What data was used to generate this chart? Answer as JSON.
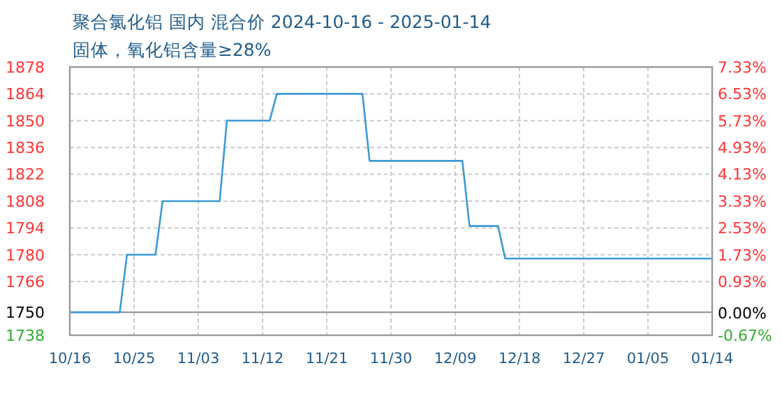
{
  "chart_data": {
    "type": "line",
    "title": "聚合氯化铝 国内 混合价 2024-10-16 - 2025-01-14",
    "subtitle": "固体，氧化铝含量≥28%",
    "x": [
      "2024-10-16",
      "2024-10-23",
      "2024-10-24",
      "2024-10-28",
      "2024-10-29",
      "2024-11-06",
      "2024-11-07",
      "2024-11-13",
      "2024-11-14",
      "2024-11-26",
      "2024-11-27",
      "2024-12-10",
      "2024-12-11",
      "2024-12-15",
      "2024-12-16",
      "2025-01-14"
    ],
    "series": [
      {
        "color": "#3d9ad6",
        "values": [
          1750,
          1750,
          1780,
          1780,
          1808,
          1808,
          1850,
          1850,
          1864,
          1864,
          1829,
          1829,
          1795,
          1795,
          1778,
          1778
        ]
      }
    ],
    "xlim": [
      "2024-10-16",
      "2025-01-14"
    ],
    "xticks": [
      {
        "value": "2024-10-16",
        "label": "10/16"
      },
      {
        "value": "2024-10-25",
        "label": "10/25"
      },
      {
        "value": "2024-11-03",
        "label": "11/03"
      },
      {
        "value": "2024-11-12",
        "label": "11/12"
      },
      {
        "value": "2024-11-21",
        "label": "11/21"
      },
      {
        "value": "2024-11-30",
        "label": "11/30"
      },
      {
        "value": "2024-12-09",
        "label": "12/09"
      },
      {
        "value": "2024-12-18",
        "label": "12/18"
      },
      {
        "value": "2024-12-27",
        "label": "12/27"
      },
      {
        "value": "2025-01-05",
        "label": "01/05"
      },
      {
        "value": "2025-01-14",
        "label": "01/14"
      }
    ],
    "ylim": [
      1738,
      1878
    ],
    "yticks": [
      1738,
      1750,
      1766,
      1780,
      1794,
      1808,
      1822,
      1836,
      1850,
      1864,
      1878
    ],
    "y2lim": [
      -0.67,
      7.33
    ],
    "y2ticks": [
      {
        "value": -0.67,
        "label": "-0.67%"
      },
      {
        "value": 0,
        "label": "0.00%"
      },
      {
        "value": 0.93,
        "label": "0.93%"
      },
      {
        "value": 1.73,
        "label": "1.73%"
      },
      {
        "value": 2.53,
        "label": "2.53%"
      },
      {
        "value": 3.33,
        "label": "3.33%"
      },
      {
        "value": 4.13,
        "label": "4.13%"
      },
      {
        "value": 4.93,
        "label": "4.93%"
      },
      {
        "value": 5.73,
        "label": "5.73%"
      },
      {
        "value": 6.53,
        "label": "6.53%"
      },
      {
        "value": 7.33,
        "label": "7.33%"
      }
    ],
    "ref_lines": [
      {
        "axis": "y",
        "value": 1750,
        "color": "#999999"
      }
    ],
    "grid": true,
    "marker": "none",
    "line_style": "solid"
  }
}
